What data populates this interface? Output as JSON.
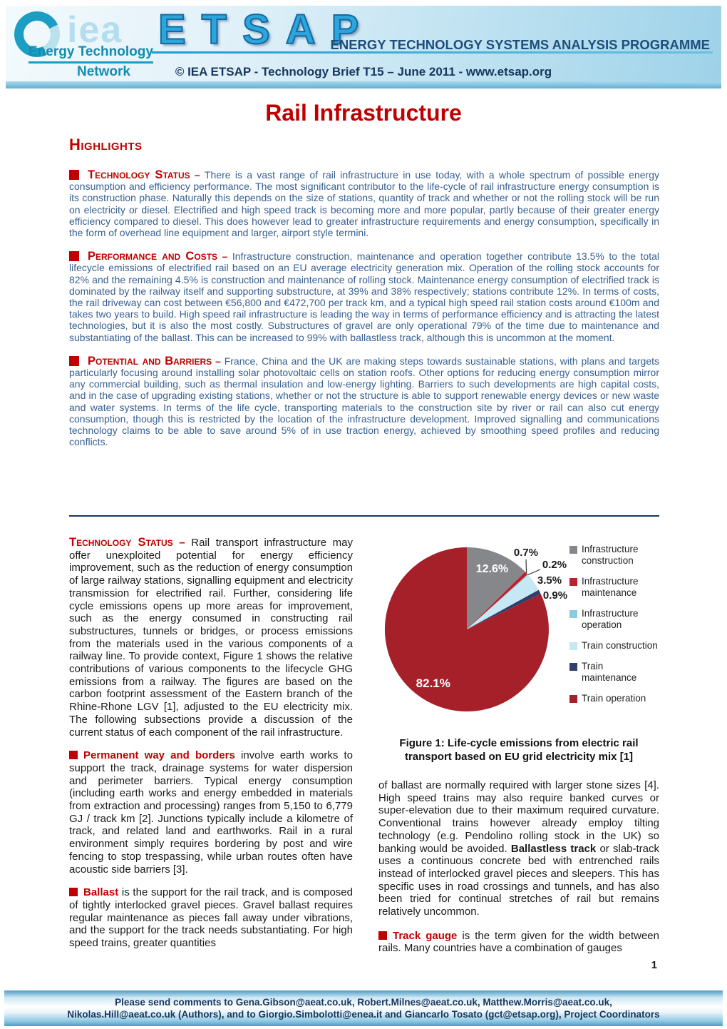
{
  "header": {
    "logo": {
      "iea_text": "iea",
      "energy": "Energy",
      "technology": "Technology",
      "network": "Network"
    },
    "etsap_wordmark": "ETSAP",
    "programme_line": "ENERGY TECHNOLOGY SYSTEMS ANALYSIS PROGRAMME",
    "brief_line": "© IEA ETSAP - Technology Brief T15 – June 2011 - www.etsap.org"
  },
  "title": "Rail Infrastructure",
  "highlights": {
    "heading": "Highlights",
    "sections": [
      {
        "label": "Technology Status",
        "dash": " – ",
        "text": "There is a vast range of rail infrastructure in use today, with a whole spectrum of possible energy consumption and efficiency performance. The most significant contributor to the life-cycle of rail infrastructure energy consumption is its construction phase. Naturally this depends on the size of stations, quantity of track and whether or not the rolling stock will be run on electricity or diesel. Electrified and high speed track is becoming more and more popular, partly because of their greater energy efficiency compared to diesel. This does however lead to greater infrastructure requirements and energy consumption, specifically in the form of overhead line equipment and larger, airport style termini."
      },
      {
        "label": "Performance and Costs",
        "dash": " – ",
        "text": "Infrastructure construction, maintenance and operation together contribute 13.5% to the total lifecycle emissions of electrified rail based on an EU average electricity generation mix. Operation of the rolling stock accounts for 82% and the remaining 4.5% is construction and maintenance of rolling stock. Maintenance energy consumption of electrified track is dominated by the railway itself and supporting substructure, at 39% and 38% respectively; stations contribute 12%. In terms of costs, the rail driveway can cost between €56,800 and €472,700 per track km, and a typical high speed rail station costs around €100m and takes two years to build. High speed rail infrastructure is leading the way in terms of performance efficiency and is attracting the latest technologies, but it is also the most costly. Substructures of gravel are only operational 79% of the time due to maintenance and substantiating of the ballast. This can be increased to 99% with ballastless track, although this is uncommon at the moment."
      },
      {
        "label": "Potential and Barriers",
        "dash": " – ",
        "text": "France, China and the UK are making steps towards sustainable stations, with plans and targets particularly focusing around installing solar photovoltaic cells on station roofs. Other options for reducing energy consumption mirror any commercial building, such as thermal insulation and low-energy lighting. Barriers to such developments are high capital costs, and in the case of upgrading existing stations, whether or not the structure is able to support renewable energy devices or new waste and water systems. In terms of the life cycle, transporting materials to the construction site by river or rail can also cut energy consumption, though this is restricted by the location of the infrastructure development. Improved signalling and communications technology claims to be able to save around 5% of in use traction energy, achieved by smoothing speed profiles and reducing conflicts."
      }
    ]
  },
  "main": {
    "left": {
      "intro_label": "Technology Status",
      "intro_dash": " – ",
      "intro_text": "Rail transport infrastructure may offer unexploited potential for energy efficiency improvement, such as the reduction of energy consumption of large railway stations, signalling equipment and electricity transmission for electrified rail. Further, considering life cycle emissions opens up more areas for improvement, such as the energy consumed in constructing rail substructures, tunnels or bridges, or process emissions from the materials used in the various components of a railway line. To provide context, Figure 1 shows the relative contributions of various components to the lifecycle GHG emissions from a railway. The figures are based on the carbon footprint assessment of the Eastern branch of the Rhine-Rhone LGV [1], adjusted to the EU electricity mix. The following subsections provide a discussion of the current status of each component of the rail infrastructure.",
      "sections": [
        {
          "label": "Permanent way and borders",
          "text": "involve earth works to support the track, drainage systems for water dispersion and perimeter barriers. Typical energy consumption (including earth works and energy embedded in materials from extraction and processing) ranges from 5,150 to 6,779 GJ / track km [2]. Junctions typically include a kilometre of track, and related land and earthworks. Rail in a rural environment simply requires bordering by post and wire fencing to stop trespassing, while urban routes often have acoustic side barriers [3]."
        },
        {
          "label": "Ballast",
          "text": "is the support for the rail track, and is composed of tightly interlocked gravel pieces. Gravel ballast requires regular maintenance as pieces fall away under vibrations, and the support for the track needs substantiating. For high speed trains, greater quantities"
        }
      ]
    },
    "right": {
      "caption": "Figure 1: Life-cycle emissions from electric rail transport based on EU grid electricity mix [1]",
      "para_pre": "of ballast are normally required with larger stone sizes [4]. High speed trains may also require banked curves or super-elevation due to their maximum required curvature. Conventional trains however already employ tilting technology (e.g. Pendolino rolling stock in the UK) so banking would be avoided.",
      "para_bold": "Ballastless track",
      "para_post": "or slab-track uses a continuous concrete bed with entrenched rails instead of interlocked gravel pieces and sleepers. This has specific uses in road crossings and tunnels, and has also been tried for continual stretches of rail but remains relatively uncommon.",
      "gauge_label": "Track gauge",
      "gauge_text": "is the term given for the width between rails. Many countries have a combination of gauges"
    }
  },
  "chart_data": {
    "type": "pie",
    "title": "Figure 1: Life-cycle emissions from electric rail transport based on EU grid electricity mix [1]",
    "categories": [
      "Infrastructure construction",
      "Infrastructure maintenance",
      "Infrastructure operation",
      "Train construction",
      "Train maintenance",
      "Train operation"
    ],
    "values": [
      12.6,
      0.7,
      0.2,
      3.5,
      0.9,
      82.1
    ],
    "labels": [
      "12.6%",
      "0.7%",
      "0.2%",
      "3.5%",
      "0.9%",
      "82.1%"
    ],
    "colors": [
      "#85878A",
      "#C01F2F",
      "#8DCCE0",
      "#C6E8F4",
      "#323E6B",
      "#A6202A"
    ],
    "legend_lines": [
      [
        "Infrastructure",
        "construction"
      ],
      [
        "Infrastructure",
        "maintenance"
      ],
      [
        "Infrastructure",
        "operation"
      ],
      [
        "Train construction"
      ],
      [
        "Train",
        "maintenance"
      ],
      [
        "Train operation"
      ]
    ],
    "legend_position": "right",
    "start_angle_deg": 0,
    "direction": "clockwise"
  },
  "page_number": "1",
  "footer": {
    "line1": "Please send comments to Gena.Gibson@aeat.co.uk, Robert.Milnes@aeat.co.uk, Matthew.Morris@aeat.co.uk,",
    "line2": "Nikolas.Hill@aeat.co.uk (Authors), and to Giorgio.Simbolotti@enea.it and Giancarlo Tosato (gct@etsap.org), Project Coordinators"
  },
  "colors": {
    "accent_red": "#C00000",
    "highlight_text_blue": "#376092",
    "dark_navy": "#17365D",
    "body_black": "#1A1A1A",
    "banner_blue": "#9ED2E9"
  }
}
